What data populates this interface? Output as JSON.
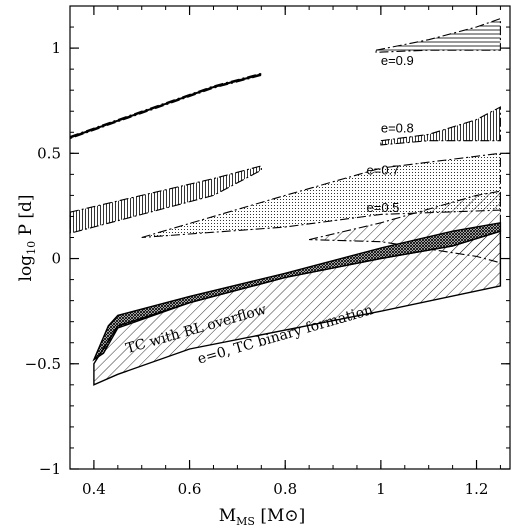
{
  "chart_data": {
    "type": "area",
    "xlabel_main": "M",
    "xlabel_sub": "MS",
    "xlabel_unit_open": " [M",
    "xlabel_unit_sym": "⊙",
    "xlabel_unit_close": "]",
    "ylabel_main": "log",
    "ylabel_sub": "10",
    "ylabel_rest": " P [d]",
    "xlim": [
      0.35,
      1.27
    ],
    "ylim": [
      -1,
      1.2
    ],
    "xticks": [
      0.4,
      0.6,
      0.8,
      1.0,
      1.2
    ],
    "xtick_labels": [
      "0.4",
      "0.6",
      "0.8",
      "1",
      "1.2"
    ],
    "yticks": [
      -1,
      -0.5,
      0,
      0.5,
      1
    ],
    "ytick_labels": [
      "−1",
      "−0.5",
      "0",
      "0.5",
      "1"
    ],
    "series": [
      {
        "upper": [
          [
            0.35,
            0.58
          ],
          [
            0.5,
            0.7
          ],
          [
            0.65,
            0.82
          ],
          [
            0.75,
            0.88
          ]
        ],
        "lower": [
          [
            0.35,
            0.57
          ],
          [
            0.5,
            0.69
          ],
          [
            0.65,
            0.81
          ],
          [
            0.75,
            0.87
          ]
        ],
        "fill": "dense"
      },
      {
        "upper": [
          [
            0.99,
            0.99
          ],
          [
            1.1,
            1.04
          ],
          [
            1.2,
            1.1
          ],
          [
            1.25,
            1.14
          ]
        ],
        "lower": [
          [
            0.99,
            0.98
          ],
          [
            1.1,
            0.99
          ],
          [
            1.2,
            0.99
          ],
          [
            1.25,
            0.99
          ]
        ],
        "fill": "hatch-h"
      },
      {
        "upper": [
          [
            0.35,
            0.22
          ],
          [
            0.5,
            0.3
          ],
          [
            0.65,
            0.38
          ],
          [
            0.75,
            0.44
          ]
        ],
        "lower": [
          [
            0.35,
            0.12
          ],
          [
            0.5,
            0.21
          ],
          [
            0.65,
            0.3
          ],
          [
            0.75,
            0.42
          ]
        ],
        "fill": "vlines"
      },
      {
        "upper": [
          [
            1.0,
            0.56
          ],
          [
            1.1,
            0.59
          ],
          [
            1.2,
            0.66
          ],
          [
            1.25,
            0.72
          ]
        ],
        "lower": [
          [
            1.0,
            0.54
          ],
          [
            1.1,
            0.56
          ],
          [
            1.2,
            0.56
          ],
          [
            1.25,
            0.56
          ]
        ],
        "fill": "vlines"
      },
      {
        "upper": [
          [
            0.5,
            0.1
          ],
          [
            0.8,
            0.3
          ],
          [
            1.0,
            0.43
          ],
          [
            1.25,
            0.5
          ]
        ],
        "lower": [
          [
            0.5,
            0.1
          ],
          [
            0.8,
            0.15
          ],
          [
            1.0,
            0.21
          ],
          [
            1.25,
            0.23
          ]
        ],
        "fill": "dots"
      },
      {
        "upper": [
          [
            0.85,
            0.09
          ],
          [
            1.0,
            0.17
          ],
          [
            1.2,
            0.3
          ],
          [
            1.25,
            0.32
          ]
        ],
        "lower": [
          [
            0.85,
            0.09
          ],
          [
            1.0,
            0.08
          ],
          [
            1.2,
            0.01
          ],
          [
            1.25,
            -0.02
          ]
        ],
        "fill": "hatch-diag"
      },
      {
        "upper": [
          [
            0.4,
            -0.48
          ],
          [
            0.43,
            -0.32
          ],
          [
            0.45,
            -0.27
          ],
          [
            0.6,
            -0.18
          ],
          [
            0.8,
            -0.07
          ],
          [
            1.0,
            0.05
          ],
          [
            1.15,
            0.13
          ],
          [
            1.25,
            0.17
          ]
        ],
        "lower": [
          [
            1.25,
            0.13
          ],
          [
            1.15,
            0.06
          ],
          [
            1.0,
            0.0
          ],
          [
            0.8,
            -0.09
          ],
          [
            0.6,
            -0.21
          ],
          [
            0.45,
            -0.33
          ],
          [
            0.42,
            -0.45
          ]
        ],
        "fill": "crosshatch"
      },
      {
        "upper": [
          [
            0.4,
            -0.5
          ],
          [
            0.45,
            -0.32
          ],
          [
            0.6,
            -0.21
          ],
          [
            0.8,
            -0.09
          ],
          [
            1.0,
            0.0
          ],
          [
            1.15,
            0.06
          ],
          [
            1.25,
            0.13
          ]
        ],
        "lower": [
          [
            1.25,
            -0.13
          ],
          [
            1.0,
            -0.25
          ],
          [
            0.8,
            -0.34
          ],
          [
            0.6,
            -0.43
          ],
          [
            0.45,
            -0.55
          ],
          [
            0.4,
            -0.6
          ]
        ],
        "fill": "hatch-diag"
      }
    ],
    "annotations": [
      {
        "text": "e=0.9",
        "x": 1.0,
        "y": 0.92
      },
      {
        "text": "e=0.8",
        "x": 1.0,
        "y": 0.6
      },
      {
        "text": "e=0.7",
        "x": 0.97,
        "y": 0.4
      },
      {
        "text": "e=0.5",
        "x": 0.97,
        "y": 0.22
      },
      {
        "text": "TC with RL overflow",
        "x": 0.47,
        "y": -0.45,
        "rotate": -16
      },
      {
        "text": "e=0, TC binary formation",
        "x": 0.62,
        "y": -0.5,
        "rotate": -16
      }
    ]
  }
}
